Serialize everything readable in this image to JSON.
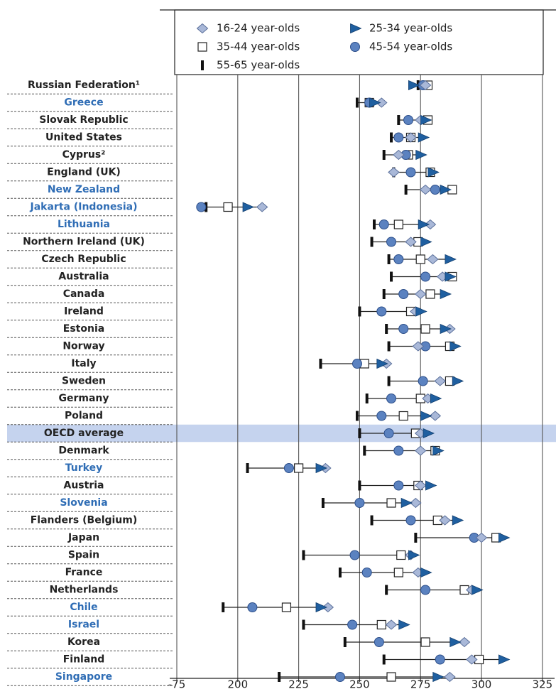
{
  "chart_data": {
    "type": "dot",
    "categories": [
      "Russian Federation¹",
      "Greece",
      "Slovak Republic",
      "United States",
      "Cyprus²",
      "England (UK)",
      "New Zealand",
      "Jakarta (Indonesia)",
      "Lithuania",
      "Northern Ireland (UK)",
      "Czech Republic",
      "Australia",
      "Canada",
      "Ireland",
      "Estonia",
      "Norway",
      "Italy",
      "Sweden",
      "Germany",
      "Poland",
      "OECD average",
      "Denmark",
      "Turkey",
      "Austria",
      "Slovenia",
      "Flanders (Belgium)",
      "Japan",
      "Spain",
      "France",
      "Netherlands",
      "Chile",
      "Israel",
      "Korea",
      "Finland",
      "Singapore"
    ],
    "category_colors": [
      "#222",
      "#2f6db5",
      "#222",
      "#222",
      "#222",
      "#222",
      "#2f6db5",
      "#2f6db5",
      "#2f6db5",
      "#222",
      "#222",
      "#222",
      "#222",
      "#222",
      "#222",
      "#222",
      "#222",
      "#222",
      "#222",
      "#222",
      "#222",
      "#222",
      "#2f6db5",
      "#222",
      "#2f6db5",
      "#222",
      "#222",
      "#222",
      "#222",
      "#222",
      "#2f6db5",
      "#2f6db5",
      "#222",
      "#222",
      "#2f6db5"
    ],
    "band": {
      "index": 20,
      "color": "#c5d3ee"
    },
    "series": [
      {
        "name": "16-24 year-olds",
        "marker": "diamond",
        "color": "#a9b8d8",
        "values": [
          277,
          259,
          275,
          271,
          266,
          264,
          277,
          210,
          279,
          271,
          280,
          284,
          275,
          273,
          287,
          274,
          261,
          283,
          278,
          281,
          275,
          275,
          236,
          275,
          273,
          285,
          300,
          271,
          274,
          296,
          237,
          263,
          293,
          296,
          287
        ]
      },
      {
        "name": "25-34 year-olds",
        "marker": "triangle",
        "color": "#1f5fa0",
        "values": [
          272,
          256,
          277,
          276,
          275,
          280,
          285,
          204,
          276,
          277,
          287,
          287,
          285,
          275,
          285,
          289,
          259,
          290,
          281,
          277,
          278,
          282,
          234,
          279,
          269,
          290,
          309,
          272,
          277,
          298,
          234,
          268,
          289,
          309,
          282
        ]
      },
      {
        "name": "35-44 year-olds",
        "marker": "square",
        "color": "#ffffff",
        "values": [
          278,
          254,
          278,
          271,
          270,
          279,
          288,
          196,
          266,
          274,
          275,
          288,
          279,
          271,
          277,
          287,
          252,
          287,
          275,
          268,
          273,
          281,
          225,
          274,
          263,
          282,
          306,
          267,
          266,
          293,
          220,
          259,
          277,
          299,
          263
        ]
      },
      {
        "name": "45-54 year-olds",
        "marker": "circle",
        "color": "#5b82c0",
        "values": [
          276,
          254,
          270,
          266,
          269,
          271,
          281,
          185,
          260,
          263,
          266,
          277,
          268,
          259,
          268,
          277,
          249,
          276,
          263,
          259,
          262,
          266,
          221,
          266,
          250,
          271,
          297,
          248,
          253,
          277,
          206,
          247,
          258,
          283,
          242
        ]
      },
      {
        "name": "55-65 year-olds",
        "marker": "bar",
        "color": "#111111",
        "values": [
          274,
          249,
          266,
          263,
          260,
          264,
          269,
          187,
          256,
          255,
          262,
          263,
          260,
          250,
          261,
          262,
          234,
          262,
          253,
          249,
          250,
          252,
          204,
          250,
          235,
          255,
          273,
          227,
          242,
          261,
          194,
          227,
          244,
          260,
          217
        ]
      }
    ],
    "xlim": [
      175,
      330
    ],
    "xticks": [
      {
        "value": 175,
        "label": "-75"
      },
      200,
      225,
      250,
      275,
      300,
      325
    ],
    "grid": true
  }
}
